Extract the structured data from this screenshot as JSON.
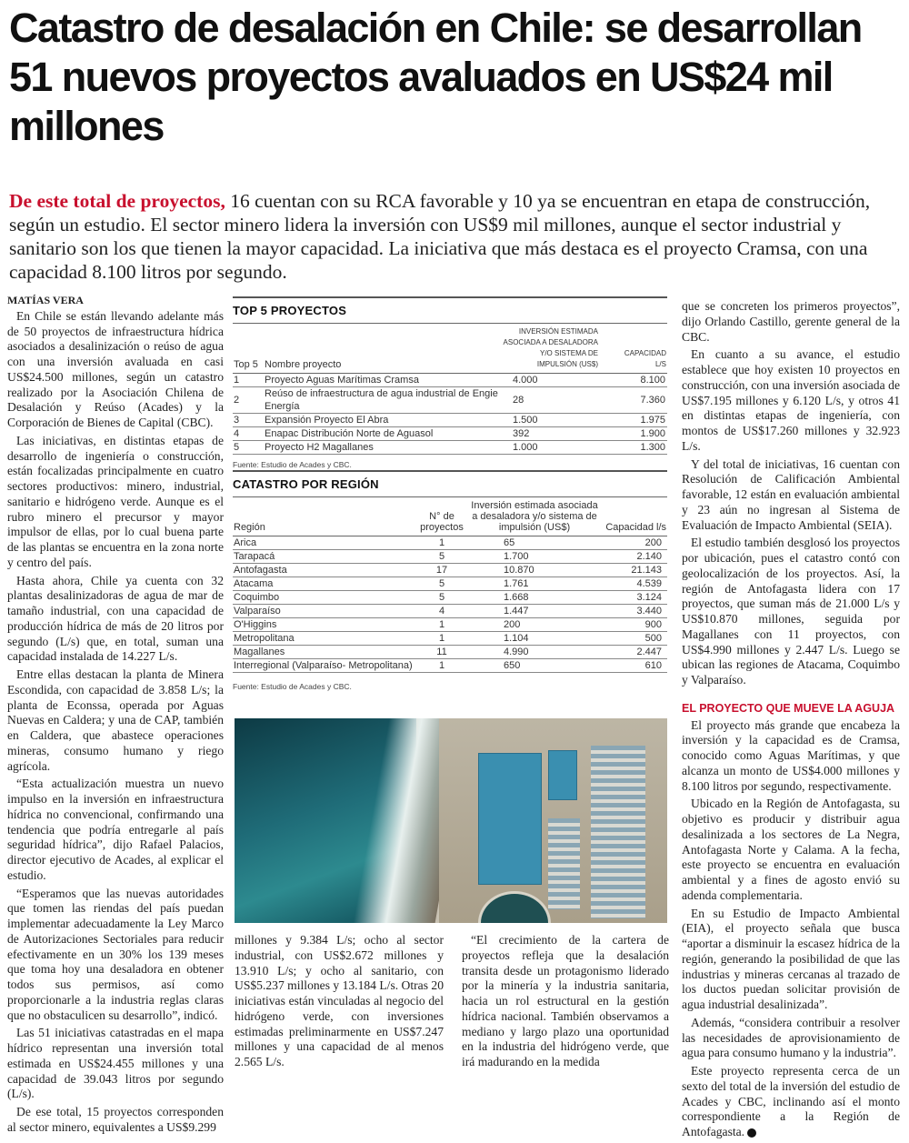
{
  "headline": "Catastro de desalación en Chile: se desarrollan 51 nuevos proyectos avaluados en US$24 mil millones",
  "lead": {
    "kicker": "De este total de proyectos,",
    "text": " 16 cuentan con su RCA favorable y 10 ya se encuentran en etapa de construcción, según un estudio. El sector minero lidera la inversión con US$9 mil millones, aunque el sector industrial y sanitario son los que tienen la mayor capacidad. La iniciativa que más destaca es el proyecto Cramsa, con una capacidad 8.100 litros por segundo."
  },
  "byline": "Matías Vera",
  "col1": [
    "En Chile se están llevando adelante más de 50 proyectos de infraestructura hídrica asociados a desalinización o reúso de agua con una inversión avaluada en casi US$24.500 millones, según un catastro realizado por la Asociación Chilena de Desalación y Reúso (Acades) y la Corporación de Bienes de Capital (CBC).",
    "Las iniciativas, en distintas etapas de desarrollo de ingeniería o construcción, están focalizadas principalmente en cuatro sectores productivos: minero, industrial, sanitario e hidrógeno verde. Aunque es el rubro minero el precursor y mayor impulsor de ellas, por lo cual buena parte de las plantas se encuentra en la zona norte y centro del país.",
    "Hasta ahora, Chile ya cuenta con 32 plantas desalinizadoras de agua de mar de tamaño industrial, con una capacidad de producción hídrica de más de 20 litros por segundo (L/s) que, en total, suman una capacidad instalada de 14.227 L/s.",
    "Entre ellas destacan la planta de Minera Escondida, con capacidad de 3.858 L/s; la planta de Econssa, operada por Aguas Nuevas en Caldera; y una de CAP, también en Caldera, que abastece operaciones mineras, consumo humano y riego agrícola.",
    "“Esta actualización muestra un nuevo impulso en la inversión en infraestructura hídrica no convencional, confirmando una tendencia que podría entregarle al país seguridad hídrica”, dijo Rafael Palacios, director ejecutivo de Acades, al explicar el estudio.",
    "“Esperamos que las nuevas autoridades que tomen las riendas del país puedan implementar adecuadamente la Ley Marco de Autorizaciones Sectoriales para reducir efectivamente en un 30% los 139 meses que toma hoy una desaladora en obtener todos sus permisos, así como proporcionarle a la industria reglas claras que no obstaculicen su desarrollo”, indicó.",
    "Las 51 iniciativas catastradas en el mapa hídrico representan una inversión total estimada en US$24.455 millones y una capacidad de 39.043 litros por segundo (L/s).",
    "De ese total, 15 proyectos corresponden al sector minero, equivalentes a US$9.299"
  ],
  "col2a": "millones y 9.384 L/s; ocho al sector industrial, con US$2.672 millones y 13.910 L/s; y ocho al sanitario, con US$5.237 millones y 13.184 L/s. Otras 20 iniciativas están vinculadas al negocio del hidrógeno verde, con inversiones estimadas preliminarmente en US$7.247 millones y una capacidad de al menos 2.565 L/s.",
  "col2b": "“El crecimiento de la cartera de proyectos refleja que la desalación transita desde un protagonismo liderado por la minería y la industria sanitaria, hacia un rol estructural en la gestión hídrica nacional. También observamos a mediano y largo plazo una oportunidad en la industria del hidrógeno verde, que irá madurando en la medida",
  "col3": [
    "que se concreten los primeros proyectos”, dijo Orlando Castillo, gerente general de la CBC.",
    "En cuanto a su avance, el estudio establece que hoy existen 10 proyectos en construcción, con una inversión asociada de US$7.195 millones y 6.120 L/s, y otros 41 en distintas etapas de ingeniería, con montos de US$17.260 millones y 32.923 L/s.",
    "Y del total de iniciativas, 16 cuentan con Resolución de Calificación Ambiental favorable, 12 están en evaluación ambiental y 23 aún no ingresan al Sistema de Evaluación de Impacto Ambiental (SEIA).",
    "El estudio también desglosó los proyectos por ubicación, pues el catastro contó con geolocalización de los proyectos. Así, la región de Antofagasta lidera con 17 proyectos, que suman más de 21.000 L/s y US$10.870 millones, seguida por Magallanes con 11 proyectos, con US$4.990 millones y 2.447 L/s. Luego se ubican las regiones de Atacama, Coquimbo y Valparaíso."
  ],
  "subhead": "El proyecto que mueve la aguja",
  "col3b": [
    "El proyecto más grande que encabeza la inversión y la capacidad es de Cramsa, conocido como Aguas Marítimas, y que alcanza un monto de US$4.000 millones y 8.100 litros por segundo, respectivamente.",
    "Ubicado en la Región de Antofagasta, su objetivo es producir y distribuir agua desalinizada a los sectores de La Negra, Antofagasta Norte y Calama. A la fecha, este proyecto se encuentra en evaluación ambiental y a fines de agosto envió su adenda complementaria.",
    "En su Estudio de Impacto Ambiental (EIA), el proyecto señala que busca “aportar a disminuir la escasez hídrica de la región, generando la posibilidad de que las industrias y mineras cercanas al trazado de los ductos puedan solicitar provisión de agua industrial desalinizada”.",
    "Además, “considera contribuir a resolver las necesidades de aprovisionamiento de agua para consumo humano y la industria”.",
    "Este proyecto representa cerca de un sexto del total de la inversión del estudio de Acades y CBC, inclinando así el monto correspondiente a la Región de Antofagasta."
  ],
  "top5": {
    "title": "TOP 5 PROYECTOS",
    "headers": [
      "Top 5",
      "Nombre proyecto",
      "Inversión estimada asociada a desaladora y/o sistema de impulsión (US$)",
      "Capacidad L/s"
    ],
    "rows": [
      [
        "1",
        "Proyecto Aguas Marítimas Cramsa",
        "4.000",
        "8.100"
      ],
      [
        "2",
        "Reúso de infraestructura de agua industrial de Engie Energía",
        "28",
        "7.360"
      ],
      [
        "3",
        "Expansión Proyecto El Abra",
        "1.500",
        "1.975"
      ],
      [
        "4",
        "Enapac Distribución Norte de Aguasol",
        "392",
        "1.900"
      ],
      [
        "5",
        "Proyecto H2 Magallanes",
        "1.000",
        "1.300"
      ]
    ],
    "source": "Fuente: Estudio de Acades y CBC."
  },
  "region": {
    "title": "CATASTRO POR REGIÓN",
    "headers": [
      "Región",
      "N° de proyectos",
      "Inversión estimada asociada a desaladora y/o sistema de impulsión (US$)",
      "Capacidad l/s"
    ],
    "rows": [
      [
        "Arica",
        "1",
        "65",
        "200"
      ],
      [
        "Tarapacá",
        "5",
        "1.700",
        "2.140"
      ],
      [
        "Antofagasta",
        "17",
        "10.870",
        "21.143"
      ],
      [
        "Atacama",
        "5",
        "1.761",
        "4.539"
      ],
      [
        "Coquimbo",
        "5",
        "1.668",
        "3.124"
      ],
      [
        "Valparaíso",
        "4",
        "1.447",
        "3.440"
      ],
      [
        "O'Higgins",
        "1",
        "200",
        "900"
      ],
      [
        "Metropolitana",
        "1",
        "1.104",
        "500"
      ],
      [
        "Magallanes",
        "11",
        "4.990",
        "2.447"
      ],
      [
        "Interregional (Valparaíso- Metropolitana)",
        "1",
        "650",
        "610"
      ]
    ],
    "source": "Fuente: Estudio de Acades y CBC."
  },
  "colors": {
    "accent": "#c8102e"
  }
}
